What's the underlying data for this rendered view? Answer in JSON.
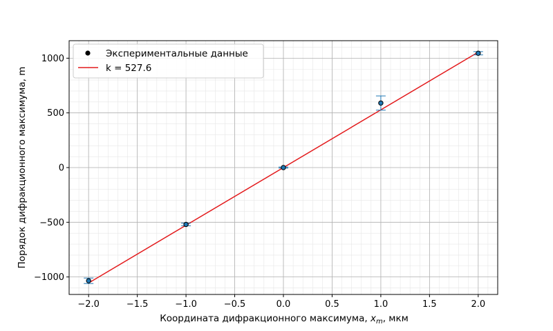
{
  "chart_data": {
    "type": "scatter",
    "title": "",
    "xlabel_parts": {
      "prefix": "Координата дифракционного максимума, ",
      "var": "x",
      "sub": "m",
      "suffix": ", мкм"
    },
    "ylabel": "Порядок дифракционного максимума, m",
    "xlim": [
      -2.2,
      2.2
    ],
    "ylim": [
      -1160,
      1160
    ],
    "x_ticks": [
      -2.0,
      -1.5,
      -1.0,
      -0.5,
      0.0,
      0.5,
      1.0,
      1.5,
      2.0
    ],
    "x_tick_labels": [
      "−2.0",
      "−1.5",
      "−1.0",
      "−0.5",
      "0.0",
      "0.5",
      "1.0",
      "1.5",
      "2.0"
    ],
    "y_ticks": [
      -1000,
      -500,
      0,
      500,
      1000
    ],
    "y_tick_labels": [
      "−1000",
      "−500",
      "0",
      "500",
      "1000"
    ],
    "grid": "major and minor",
    "legend_position": "top-left",
    "series": [
      {
        "name": "Экспериментальные данные",
        "kind": "points-with-errorbars",
        "marker_color": "#1f77b4",
        "errorbar_color": "#1f77b4",
        "points": [
          {
            "x": -2.0,
            "y": -1035,
            "err": 25
          },
          {
            "x": -1.0,
            "y": -520,
            "err": 12
          },
          {
            "x": 0.0,
            "y": 0,
            "err": 5
          },
          {
            "x": 1.0,
            "y": 590,
            "err": 65
          },
          {
            "x": 2.0,
            "y": 1045,
            "err": 15
          }
        ]
      },
      {
        "name": "k = 527.6",
        "kind": "fit-line",
        "color": "#e31a1c",
        "slope": 527.6,
        "x_range": [
          -2.0,
          2.0
        ]
      }
    ]
  }
}
